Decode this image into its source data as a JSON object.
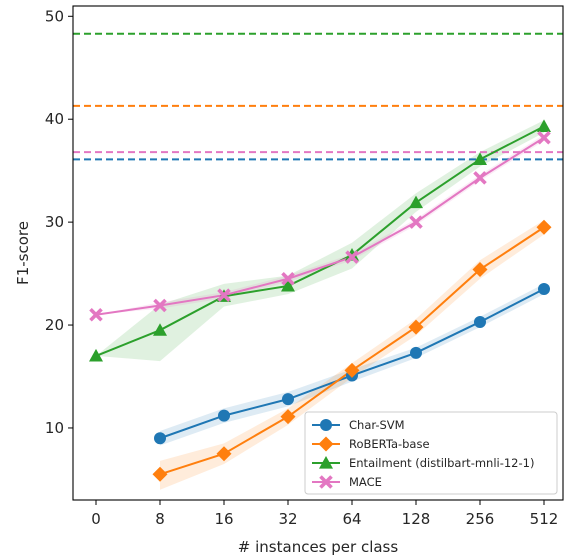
{
  "chart_data": {
    "type": "line",
    "xlabel": "# instances per class",
    "ylabel": "F1-score",
    "categories": [
      "0",
      "8",
      "16",
      "32",
      "64",
      "128",
      "256",
      "512"
    ],
    "ylim": [
      3,
      51
    ],
    "yticks": [
      10,
      20,
      30,
      40,
      50
    ],
    "grid": false,
    "legend_position": "bottom-right",
    "series": [
      {
        "name": "Char-SVM",
        "color": "#1f77b4",
        "marker": "circle",
        "values": [
          null,
          9.0,
          11.2,
          12.8,
          15.1,
          17.3,
          20.3,
          23.5
        ],
        "band_low": [
          null,
          8.3,
          10.5,
          12.1,
          14.5,
          16.8,
          19.8,
          23.0
        ],
        "band_high": [
          null,
          9.7,
          11.9,
          13.5,
          15.7,
          17.8,
          20.8,
          24.0
        ],
        "reference": 36.1
      },
      {
        "name": "RoBERTa-base",
        "color": "#ff7f0e",
        "marker": "diamond",
        "values": [
          null,
          5.5,
          7.5,
          11.1,
          15.6,
          19.8,
          25.4,
          29.5
        ],
        "band_low": [
          null,
          4.0,
          6.5,
          10.3,
          14.9,
          19.0,
          24.5,
          28.8
        ],
        "band_high": [
          null,
          6.8,
          8.5,
          11.9,
          16.3,
          20.6,
          26.3,
          30.2
        ],
        "reference": 41.3
      },
      {
        "name": "Entailment (distilbart-mnli-12-1)",
        "color": "#2ca02c",
        "marker": "triangle",
        "values": [
          17.0,
          19.5,
          22.8,
          23.8,
          26.8,
          31.9,
          36.1,
          39.3
        ],
        "band_low": [
          17.0,
          16.5,
          21.8,
          23.0,
          25.5,
          31.0,
          35.4,
          38.7
        ],
        "band_high": [
          17.0,
          22.0,
          24.0,
          24.8,
          28.0,
          32.8,
          36.8,
          39.9
        ],
        "reference": 48.3
      },
      {
        "name": "MACE",
        "color": "#e377c2",
        "marker": "x",
        "values": [
          21.0,
          21.9,
          22.9,
          24.5,
          26.6,
          30.0,
          34.3,
          38.2
        ],
        "band_low": [
          21.0,
          21.6,
          22.6,
          24.2,
          26.3,
          29.7,
          34.0,
          37.9
        ],
        "band_high": [
          21.0,
          22.2,
          23.2,
          24.8,
          26.9,
          30.3,
          34.6,
          38.5
        ],
        "reference": 36.8
      }
    ]
  }
}
